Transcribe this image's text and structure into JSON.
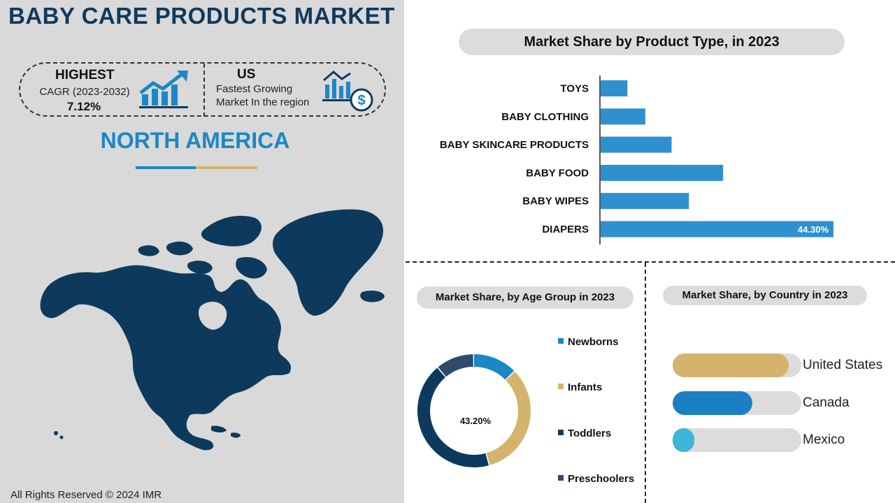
{
  "header": {
    "title": "BABY CARE PRODUCTS MARKET"
  },
  "stats": {
    "highest_title": "HIGHEST",
    "highest_subtitle": "CAGR (2023-2032)",
    "highest_value": "7.12%",
    "us_title": "US",
    "us_line1": "Fastest Growing",
    "us_line2": "Market In the region"
  },
  "region": {
    "name": "NORTH AMERICA"
  },
  "footer": {
    "copyright": "All Rights Reserved © 2024 IMR"
  },
  "colors": {
    "navy": "#0e3a5e",
    "accent_blue": "#1b87c7",
    "bar_blue": "#2e90cf",
    "gold": "#d4b46c",
    "dark_navy": "#0d3a5c",
    "slate": "#2f4a6b",
    "light_blue": "#3fb5d9",
    "pill_gray": "#dcdcdc"
  },
  "chart_data": [
    {
      "type": "bar",
      "orientation": "horizontal",
      "title": "Market Share by Product Type,  in 2023",
      "categories": [
        "TOYS",
        "BABY CLOTHING",
        "BABY SKINCARE PRODUCTS",
        "BABY FOOD",
        "BABY WIPES",
        "DIAPERS"
      ],
      "values": [
        5.1,
        8.5,
        13.5,
        23.3,
        16.8,
        44.3
      ],
      "value_labels": [
        "",
        "",
        "",
        "",
        "",
        "44.30%"
      ],
      "xlim": [
        0,
        44.3
      ]
    },
    {
      "type": "pie",
      "style": "donut",
      "title": "Market Share, by Age Group in 2023",
      "categories": [
        "Newborns",
        "Infants",
        "Toddlers",
        "Preschoolers"
      ],
      "values": [
        12.8,
        33.0,
        43.2,
        11.0
      ],
      "center_label": "43.20%",
      "colors": [
        "#1b87c7",
        "#d4b46c",
        "#0d3a5c",
        "#2f4a6b"
      ]
    },
    {
      "type": "bar",
      "orientation": "horizontal",
      "title": "Market Share, by Country in 2023",
      "categories": [
        "United States",
        "Canada",
        "Mexico"
      ],
      "values": [
        0.9,
        0.62,
        0.17
      ],
      "colors": [
        "#d4b46c",
        "#1b7fc4",
        "#3fb5d9"
      ]
    }
  ]
}
